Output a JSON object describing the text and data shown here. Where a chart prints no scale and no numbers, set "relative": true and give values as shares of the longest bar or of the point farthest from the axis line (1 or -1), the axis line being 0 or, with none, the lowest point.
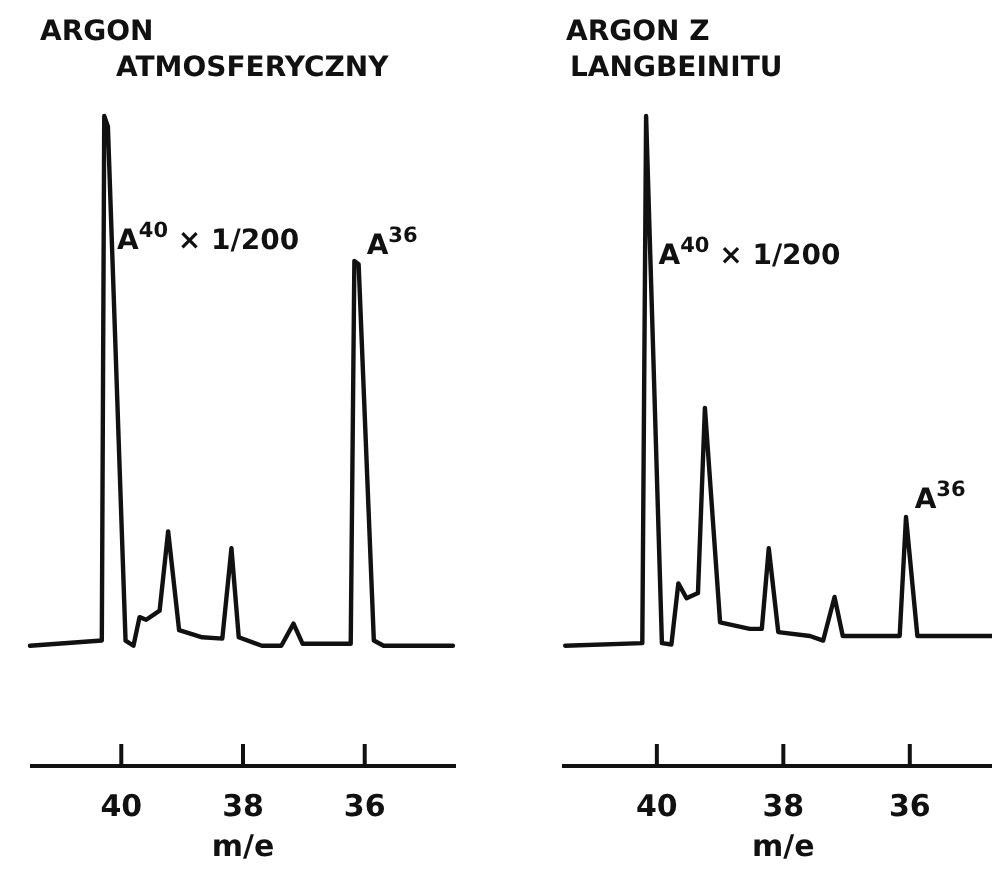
{
  "chart_data": [
    {
      "type": "line",
      "title": "ARGON\nATMOSFERYCZNY",
      "xlabel": "m/e",
      "relative": true,
      "xlim": [
        41.5,
        34.5
      ],
      "xticks": [
        40,
        38,
        36
      ],
      "tick_labels": "x",
      "grid": false,
      "marker": "none",
      "line_style": "solid",
      "annotations": [
        {
          "text": "A$^{40}$ × 1/200",
          "x": 40.2,
          "y": 0.796
        },
        {
          "text": "A$^{36}$",
          "x": 36.1,
          "y": 0.788
        }
      ],
      "series": [
        {
          "color": "#111111",
          "x": [
            41.5,
            40.32,
            40.3,
            40.28,
            40.22,
            39.93,
            39.8,
            39.7,
            39.59,
            39.37,
            39.23,
            39.05,
            38.67,
            38.34,
            38.19,
            38.07,
            37.69,
            37.37,
            37.17,
            37.02,
            36.23,
            36.17,
            36.1,
            35.85,
            35.69,
            34.55
          ],
          "values": [
            0.185,
            0.193,
            0.592,
            1,
            0.984,
            0.193,
            0.185,
            0.229,
            0.225,
            0.239,
            0.361,
            0.209,
            0.198,
            0.196,
            0.335,
            0.198,
            0.185,
            0.185,
            0.219,
            0.188,
            0.188,
            0.777,
            0.772,
            0.193,
            0.185,
            0.185
          ]
        }
      ]
    },
    {
      "type": "line",
      "title": "ARGON Z\nLANGBEINITU",
      "xlabel": "m/e",
      "relative": true,
      "xlim": [
        41.5,
        34.7
      ],
      "xticks": [
        40,
        38,
        36
      ],
      "tick_labels": "x",
      "grid": false,
      "marker": "none",
      "line_style": "solid",
      "annotations": [
        {
          "text": "A$^{40}$ × 1/200",
          "x": 40.1,
          "y": 0.772
        },
        {
          "text": "A$^{36}$",
          "x": 36.05,
          "y": 0.397
        }
      ],
      "series": [
        {
          "color": "#111111",
          "x": [
            41.45,
            40.23,
            40.17,
            39.92,
            39.77,
            39.66,
            39.53,
            39.35,
            39.24,
            39.0,
            38.53,
            38.34,
            38.23,
            38.08,
            37.58,
            37.37,
            37.19,
            37.06,
            36.16,
            36.06,
            35.88,
            34.7
          ],
          "values": [
            0.185,
            0.189,
            1,
            0.189,
            0.187,
            0.281,
            0.258,
            0.266,
            0.551,
            0.221,
            0.211,
            0.211,
            0.335,
            0.206,
            0.2,
            0.193,
            0.26,
            0.2,
            0.2,
            0.383,
            0.2,
            0.2
          ]
        }
      ]
    }
  ]
}
